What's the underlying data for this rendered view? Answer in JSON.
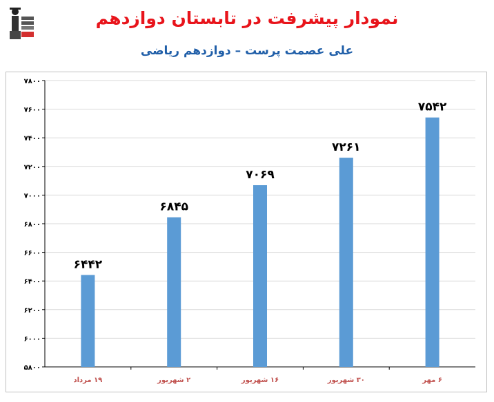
{
  "title": "نمودار پیشرفت در تابستان دوازدهم",
  "subtitle": "علی عصمت پرست – دوازدهم ریاضی",
  "colors": {
    "title": "#e8141b",
    "subtitle": "#1f5ea8",
    "bar": "#5b9bd5",
    "category_label": "#c0504d",
    "grid": "#d9d9d9",
    "axis": "#000000"
  },
  "chart_data": {
    "type": "bar",
    "title": "",
    "xlabel": "",
    "ylabel": "",
    "categories": [
      "۱۹ مرداد",
      "۲ شهریور",
      "۱۶ شهریور",
      "۳۰ شهریور",
      "۶ مهر"
    ],
    "values": [
      6442,
      6845,
      7069,
      7261,
      7542
    ],
    "value_labels": [
      "۶۴۴۲",
      "۶۸۴۵",
      "۷۰۶۹",
      "۷۲۶۱",
      "۷۵۴۲"
    ],
    "ylim": [
      5800,
      7800
    ],
    "yticks": [
      5800,
      6000,
      6200,
      6400,
      6600,
      6800,
      7000,
      7200,
      7400,
      7600,
      7800
    ],
    "ytick_labels": [
      "۵۸۰۰",
      "۶۰۰۰",
      "۶۲۰۰",
      "۶۴۰۰",
      "۶۶۰۰",
      "۶۸۰۰",
      "۷۰۰۰",
      "۷۲۰۰",
      "۷۴۰۰",
      "۷۶۰۰",
      "۷۸۰۰"
    ],
    "grid": true,
    "legend": "none"
  }
}
